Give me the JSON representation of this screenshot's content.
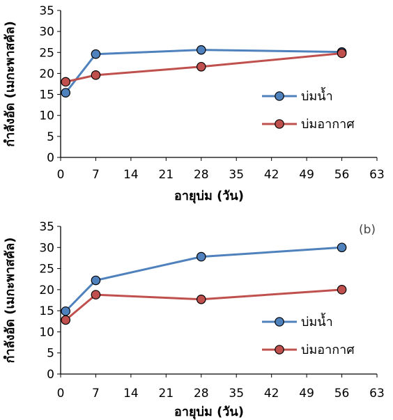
{
  "chart_data": [
    {
      "type": "line",
      "title": "",
      "panel_label": "",
      "xlabel": "อายุบ่ม (วัน)",
      "ylabel": "กำลังอัด (เมกะพาสคัล)",
      "xlim": [
        0,
        63
      ],
      "ylim": [
        0,
        35
      ],
      "xticks": [
        0,
        7,
        14,
        21,
        28,
        35,
        42,
        49,
        56,
        63
      ],
      "yticks": [
        0,
        5,
        10,
        15,
        20,
        25,
        30,
        35
      ],
      "grid": false,
      "legend_position": "right",
      "series": [
        {
          "name": "บ่มน้ำ",
          "color": "#4F81BD",
          "x": [
            1,
            7,
            28,
            56
          ],
          "y": [
            15.4,
            24.6,
            25.6,
            25.1
          ]
        },
        {
          "name": "บ่มอากาศ",
          "color": "#C0504D",
          "x": [
            1,
            7,
            28,
            56
          ],
          "y": [
            18.0,
            19.6,
            21.6,
            24.8
          ]
        }
      ]
    },
    {
      "type": "line",
      "title": "",
      "panel_label": "(b)",
      "xlabel": "อายุบ่ม (วัน)",
      "ylabel": "กำลังอัด (เมกะพาสคัล)",
      "xlim": [
        0,
        63
      ],
      "ylim": [
        0,
        35
      ],
      "xticks": [
        0,
        7,
        14,
        21,
        28,
        35,
        42,
        49,
        56,
        63
      ],
      "yticks": [
        0,
        5,
        10,
        15,
        20,
        25,
        30,
        35
      ],
      "grid": false,
      "legend_position": "right",
      "series": [
        {
          "name": "บ่มน้ำ",
          "color": "#4F81BD",
          "x": [
            1,
            7,
            28,
            56
          ],
          "y": [
            14.9,
            22.2,
            27.8,
            30.0
          ]
        },
        {
          "name": "บ่มอากาศ",
          "color": "#C0504D",
          "x": [
            1,
            7,
            28,
            56
          ],
          "y": [
            12.8,
            18.8,
            17.7,
            20.0
          ]
        }
      ]
    }
  ]
}
